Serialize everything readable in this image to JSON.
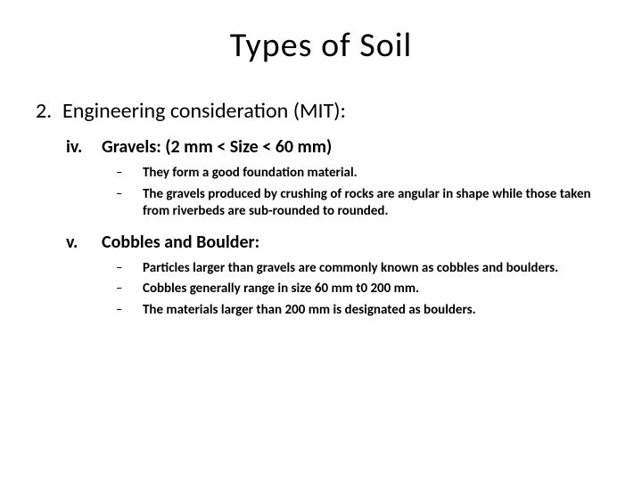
{
  "title": "Types of Soil",
  "numbered": {
    "marker": "2.",
    "text": "Engineering consideration (MIT):"
  },
  "items": [
    {
      "marker": "iv.",
      "heading": "Gravels: (2 mm <  Size < 60 mm)",
      "bullets": [
        "They form a good foundation material.",
        "The gravels produced by crushing of rocks are angular in shape while those taken from riverbeds are sub-rounded to rounded."
      ]
    },
    {
      "marker": "v.",
      "heading": "Cobbles and Boulder:",
      "bullets": [
        "Particles larger than gravels are commonly known as cobbles and boulders.",
        "Cobbles generally range in size 60 mm t0 200 mm.",
        "The materials larger than 200 mm is designated as boulders."
      ]
    }
  ],
  "style": {
    "bg": "#ffffff",
    "text_color": "#000000",
    "title_fontsize": 38,
    "level1_fontsize": 24,
    "level2_fontsize": 20,
    "level3_fontsize": 15,
    "dash": "–"
  }
}
